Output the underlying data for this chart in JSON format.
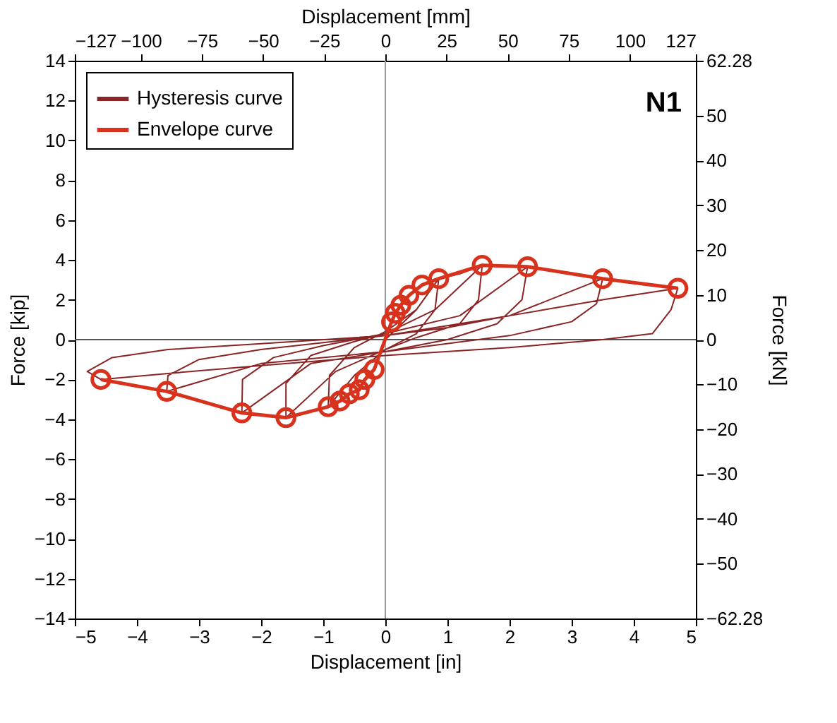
{
  "chart_data": {
    "type": "line",
    "xlabel": "Displacement [in]",
    "ylabel": "Force [kip]",
    "x2label": "Displacement [mm]",
    "y2label": "Force [kN]",
    "xlim": [
      -5,
      5
    ],
    "xticks": [
      -5,
      -4,
      -3,
      -2,
      -1,
      0,
      1,
      2,
      3,
      4,
      5
    ],
    "ylim": [
      -14,
      14
    ],
    "yticks": [
      -14,
      -12,
      -10,
      -8,
      -6,
      -4,
      -2,
      0,
      2,
      4,
      6,
      8,
      10,
      12,
      14
    ],
    "x2lim": [
      -127,
      127
    ],
    "x2ticks": [
      -127,
      -100,
      -75,
      -50,
      -25,
      0,
      25,
      50,
      75,
      100,
      127
    ],
    "y2lim": [
      -62.28,
      62.28
    ],
    "y2ticks": [
      -62.28,
      -50,
      -40,
      -30,
      -20,
      -10,
      0,
      10,
      20,
      30,
      40,
      50,
      62.28
    ],
    "annotations": [
      "N1"
    ],
    "legend": "top left",
    "grid": false,
    "line_style": "solid",
    "ref_lines": [
      {
        "axis": "x",
        "value": 0,
        "color": "#999999"
      },
      {
        "axis": "y",
        "value": 0,
        "color": "#555555"
      }
    ],
    "series": [
      {
        "name": "Hysteresis curve",
        "color": "#8b2525",
        "marker": "none",
        "x": [
          0,
          0.5,
          0.86,
          0.8,
          0.5,
          0,
          -0.5,
          -0.92,
          -0.9,
          -0.5,
          0,
          0.5,
          0.86,
          1.2,
          1.56,
          1.5,
          1.2,
          0.5,
          0,
          -0.8,
          -1.6,
          -1.6,
          -1.2,
          -0.5,
          0,
          0.8,
          1.56,
          2.0,
          2.29,
          2.2,
          1.8,
          1,
          0,
          -1.2,
          -2.31,
          -2.3,
          -1.8,
          -1,
          0,
          1.2,
          2.29,
          3.0,
          3.5,
          3.4,
          3.0,
          2,
          0,
          -2,
          -3.52,
          -3.5,
          -3.0,
          -2,
          0,
          2,
          3.5,
          4.2,
          4.71,
          4.6,
          4.3,
          3.5,
          2,
          0,
          -2,
          -3.5,
          -4.58,
          -4.8,
          -4.4,
          -3.5,
          -2,
          0,
          1,
          2,
          3.5,
          4.71
        ],
        "values": [
          0,
          1.5,
          3.06,
          1.5,
          0.3,
          -0.5,
          -1.8,
          -3.37,
          -1.8,
          -0.4,
          0.4,
          1.5,
          3.06,
          3.3,
          3.73,
          2.0,
          0.8,
          0.1,
          -0.5,
          -1.6,
          -3.92,
          -2.2,
          -0.8,
          -0.1,
          0.3,
          1.5,
          3.73,
          3.7,
          3.66,
          2.0,
          0.8,
          0,
          -0.6,
          -1.2,
          -3.68,
          -2.0,
          -0.9,
          -0.3,
          0.3,
          1.2,
          3.66,
          3.3,
          3.06,
          1.8,
          0.9,
          0.2,
          -0.6,
          -1.2,
          -2.6,
          -1.8,
          -1.0,
          -0.5,
          0.2,
          1.2,
          3.06,
          2.8,
          2.58,
          1.5,
          0.3,
          0,
          -0.4,
          -0.8,
          -1.3,
          -1.7,
          -2.0,
          -1.6,
          -0.9,
          -0.5,
          -0.2,
          0.2,
          0.6,
          1.2,
          2.0,
          2.58
        ]
      },
      {
        "name": "Envelope curve",
        "color": "#d8321c",
        "marker": "circle",
        "x": [
          -4.58,
          -3.52,
          -2.31,
          -1.6,
          -0.92,
          -0.73,
          -0.58,
          -0.42,
          -0.33,
          -0.18,
          0.1,
          0.16,
          0.25,
          0.38,
          0.59,
          0.86,
          1.56,
          2.29,
          3.5,
          4.71
        ],
        "values": [
          -2.0,
          -2.6,
          -3.68,
          -3.92,
          -3.37,
          -3.08,
          -2.72,
          -2.52,
          -2.0,
          -1.5,
          0.89,
          1.32,
          1.73,
          2.22,
          2.74,
          3.06,
          3.73,
          3.66,
          3.06,
          2.58
        ]
      }
    ]
  }
}
